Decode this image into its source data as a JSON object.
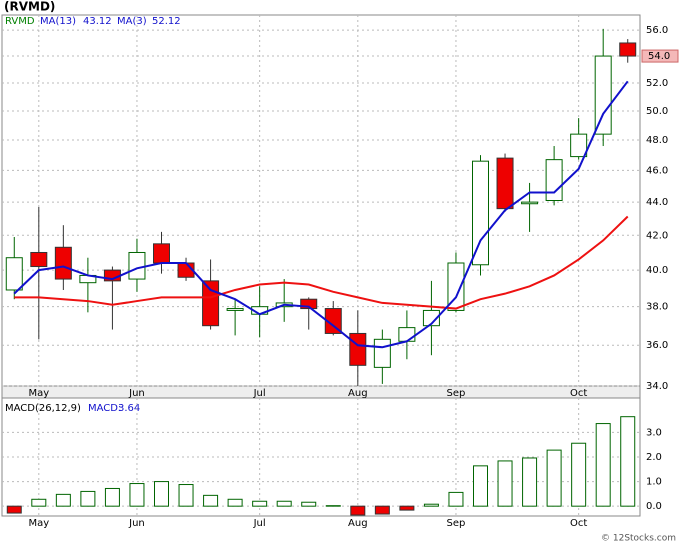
{
  "chart_data": [
    {
      "type": "candlestick",
      "title": "(RVMD)",
      "symbol": "RVMD",
      "symbol_color": "#008000",
      "categories": [
        null,
        "May",
        null,
        null,
        null,
        "Jun",
        null,
        null,
        null,
        null,
        "Jul",
        null,
        null,
        null,
        "Aug",
        null,
        null,
        null,
        "Sep",
        null,
        null,
        null,
        null,
        "Oct",
        null,
        null
      ],
      "open": [
        38.9,
        41.0,
        41.3,
        39.3,
        40.0,
        39.5,
        41.5,
        40.4,
        39.4,
        37.8,
        37.6,
        38.0,
        38.4,
        37.9,
        36.6,
        34.9,
        36.2,
        37.0,
        37.8,
        40.3,
        46.8,
        43.9,
        44.1,
        46.9,
        48.4,
        55.0
      ],
      "high": [
        41.9,
        43.7,
        42.6,
        40.7,
        40.2,
        41.8,
        42.2,
        40.7,
        40.6,
        38.4,
        39.1,
        39.5,
        38.5,
        38.3,
        37.8,
        36.8,
        37.8,
        39.4,
        41.0,
        47.0,
        47.1,
        45.2,
        47.6,
        49.5,
        56.1,
        55.3
      ],
      "low": [
        38.4,
        36.3,
        38.9,
        37.7,
        36.8,
        38.8,
        39.8,
        39.4,
        36.8,
        36.5,
        36.4,
        37.2,
        36.8,
        36.5,
        34.0,
        34.1,
        35.3,
        35.5,
        37.7,
        39.7,
        43.4,
        42.2,
        43.8,
        46.7,
        47.6,
        53.5
      ],
      "close": [
        40.7,
        40.2,
        39.5,
        39.7,
        39.4,
        41.0,
        40.4,
        39.6,
        37.0,
        37.9,
        38.0,
        38.2,
        37.9,
        36.6,
        35.0,
        36.3,
        36.9,
        37.8,
        40.4,
        46.6,
        43.6,
        44.0,
        46.7,
        48.4,
        54.0,
        54.0
      ],
      "up_color": "#006400",
      "down_color": "#ee0000",
      "last_label": "54.0",
      "series": [
        {
          "name": "MA(13)",
          "color": "#ee1111",
          "values": [
            38.5,
            38.5,
            38.4,
            38.3,
            38.1,
            38.3,
            38.5,
            38.5,
            38.5,
            38.9,
            39.2,
            39.3,
            39.2,
            38.8,
            38.5,
            38.2,
            38.1,
            38.0,
            37.9,
            38.4,
            38.7,
            39.1,
            39.7,
            40.6,
            41.7,
            43.12
          ]
        },
        {
          "name": "MA(3)",
          "color": "#1111cc",
          "values": [
            38.7,
            40.0,
            40.2,
            39.7,
            39.5,
            40.1,
            40.4,
            40.4,
            38.9,
            38.4,
            37.6,
            38.1,
            38.0,
            37.0,
            36.0,
            35.9,
            36.2,
            37.1,
            38.5,
            41.7,
            43.5,
            44.6,
            44.6,
            46.1,
            49.8,
            52.12
          ]
        }
      ],
      "log_scale": true,
      "grid": true,
      "ylim": [
        34,
        57.2
      ],
      "yticks": [
        {
          "value": 34,
          "label": "34.0"
        },
        {
          "value": 36,
          "label": "36.0"
        },
        {
          "value": 38,
          "label": "38.0"
        },
        {
          "value": 40,
          "label": "40.0"
        },
        {
          "value": 42,
          "label": "42.0"
        },
        {
          "value": 44,
          "label": "44.0"
        },
        {
          "value": 46,
          "label": "46.0"
        },
        {
          "value": 48,
          "label": "48.0"
        },
        {
          "value": 50,
          "label": "50.0"
        },
        {
          "value": 52,
          "label": "52.0"
        },
        {
          "value": 54,
          "label": "54.0"
        },
        {
          "value": 56,
          "label": "56.0"
        }
      ]
    },
    {
      "type": "bar",
      "title": "MACD(26,12,9)",
      "series_label": "MACD:",
      "values": [
        -0.28,
        0.28,
        0.48,
        0.6,
        0.72,
        0.92,
        1.0,
        0.88,
        0.44,
        0.28,
        0.2,
        0.2,
        0.16,
        0.02,
        -0.36,
        -0.32,
        -0.16,
        0.08,
        0.56,
        1.64,
        1.84,
        1.96,
        2.28,
        2.56,
        3.36,
        3.64
      ],
      "up_color": "#006400",
      "down_color": "#ee0000",
      "grid": true,
      "ylim": [
        -0.4,
        4.4
      ],
      "yticks": [
        {
          "value": 0,
          "label": "0.0"
        },
        {
          "value": 1,
          "label": "1.0"
        },
        {
          "value": 2,
          "label": "2.0"
        },
        {
          "value": 3,
          "label": "3.0"
        }
      ]
    }
  ],
  "footer": "© 12Stocks.com"
}
